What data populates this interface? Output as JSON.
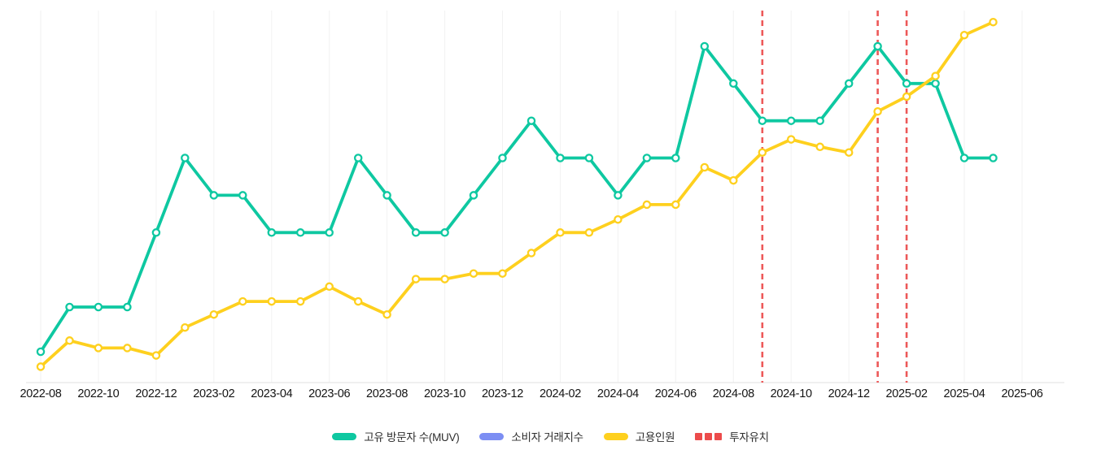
{
  "canvas": {
    "background": "#ffffff",
    "grid_color": "#f2f2f2",
    "axis_color": "#e7e7e7",
    "tick_label_color": "#141414",
    "legend_label_color": "#2e2e2e"
  },
  "chart_data": {
    "type": "line",
    "title": "",
    "xlabel": "",
    "ylabel": "",
    "y_axis_labels_shown": false,
    "value_scale": "relative 0-100 of plot height (no y-axis ticks are rendered in the chart)",
    "grid": "vertical-only",
    "legend_position": "bottom-center",
    "x": [
      "2022-08",
      "2022-09",
      "2022-10",
      "2022-11",
      "2022-12",
      "2023-01",
      "2023-02",
      "2023-03",
      "2023-04",
      "2023-05",
      "2023-06",
      "2023-07",
      "2023-08",
      "2023-09",
      "2023-10",
      "2023-11",
      "2023-12",
      "2024-01",
      "2024-02",
      "2024-03",
      "2024-04",
      "2024-05",
      "2024-06",
      "2024-07",
      "2024-08",
      "2024-09",
      "2024-10",
      "2024-11",
      "2024-12",
      "2025-01",
      "2025-02",
      "2025-03",
      "2025-04",
      "2025-05"
    ],
    "x_tick_labels": [
      "2022-08",
      "2022-10",
      "2022-12",
      "2023-02",
      "2023-04",
      "2023-06",
      "2023-08",
      "2023-10",
      "2023-12",
      "2024-02",
      "2024-04",
      "2024-06",
      "2024-08",
      "2024-10",
      "2024-12",
      "2025-02",
      "2025-04",
      "2025-06"
    ],
    "series": [
      {
        "name": "고유 방문자 수(MUV)",
        "color": "#0ec8a1",
        "line_style": "solid",
        "marker": "open-circle",
        "values": [
          8,
          20,
          20,
          20,
          40,
          60,
          50,
          50,
          40,
          40,
          40,
          60,
          50,
          40,
          40,
          50,
          60,
          70,
          60,
          60,
          50,
          60,
          60,
          90,
          80,
          70,
          70,
          70,
          80,
          90,
          80,
          80,
          60,
          60
        ]
      },
      {
        "name": "소비자 거래지수",
        "color": "#7c8ef3",
        "line_style": "solid",
        "marker": "open-circle",
        "values": []
      },
      {
        "name": "고용인원",
        "color": "#fed01e",
        "line_style": "solid",
        "marker": "open-circle",
        "values": [
          4,
          11,
          9,
          9,
          7,
          14.5,
          18,
          21.5,
          21.5,
          21.5,
          25.5,
          21.5,
          18,
          27.5,
          27.5,
          29,
          29,
          34.5,
          40,
          40,
          43.5,
          47.5,
          47.5,
          57.5,
          54,
          61.5,
          65,
          63,
          61.5,
          72.5,
          76.5,
          82,
          93,
          96.5
        ]
      },
      {
        "name": "투자유치",
        "color": "#ec4b4b",
        "line_style": "dashed-vertical-event-lines",
        "event_months": [
          "2024-09",
          "2025-01",
          "2025-02"
        ]
      }
    ]
  }
}
